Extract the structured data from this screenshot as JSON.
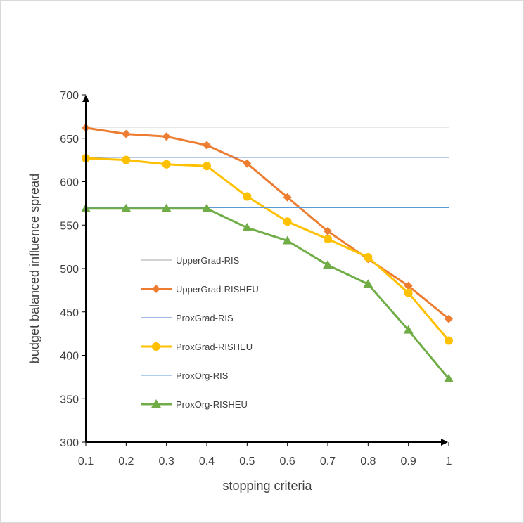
{
  "chart_data": {
    "type": "line",
    "title": "",
    "xlabel": "stopping criteria",
    "ylabel": "budget balanced influence spread",
    "x": [
      0.1,
      0.2,
      0.3,
      0.4,
      0.5,
      0.6,
      0.7,
      0.8,
      0.9,
      1
    ],
    "x_tick_labels": [
      "0.1",
      "0.2",
      "0.3",
      "0.4",
      "0.5",
      "0.6",
      "0.7",
      "0.8",
      "0.9",
      "1"
    ],
    "ylim": [
      300,
      700
    ],
    "y_ticks": [
      300,
      350,
      400,
      450,
      500,
      550,
      600,
      650,
      700
    ],
    "grid": false,
    "legend_position": "left-middle",
    "series": [
      {
        "name": "UpperGrad-RIS",
        "color": "#a5a5a5",
        "marker": "none",
        "style": "thin",
        "values": [
          663,
          663,
          663,
          663,
          663,
          663,
          663,
          663,
          663,
          663
        ]
      },
      {
        "name": "UpperGrad-RISHEU",
        "color": "#ed7d31",
        "marker": "diamond",
        "style": "thick",
        "values": [
          662,
          655,
          652,
          642,
          621,
          582,
          543,
          511,
          480,
          442
        ]
      },
      {
        "name": "ProxGrad-RIS",
        "color": "#4472c4",
        "marker": "none",
        "style": "thin",
        "values": [
          628,
          628,
          628,
          628,
          628,
          628,
          628,
          628,
          628,
          628
        ]
      },
      {
        "name": "ProxGrad-RISHEU",
        "color": "#ffc000",
        "marker": "circle",
        "style": "thick",
        "values": [
          627,
          625,
          620,
          618,
          583,
          554,
          534,
          513,
          472,
          417
        ]
      },
      {
        "name": "ProxOrg-RIS",
        "color": "#5b9bd5",
        "marker": "none",
        "style": "thin",
        "values": [
          570,
          570,
          570,
          570,
          570,
          570,
          570,
          570,
          570,
          570
        ]
      },
      {
        "name": "ProxOrg-RISHEU",
        "color": "#70ad47",
        "marker": "triangle",
        "style": "thick",
        "values": [
          569,
          569,
          569,
          569,
          547,
          532,
          504,
          482,
          429,
          373
        ]
      }
    ]
  }
}
